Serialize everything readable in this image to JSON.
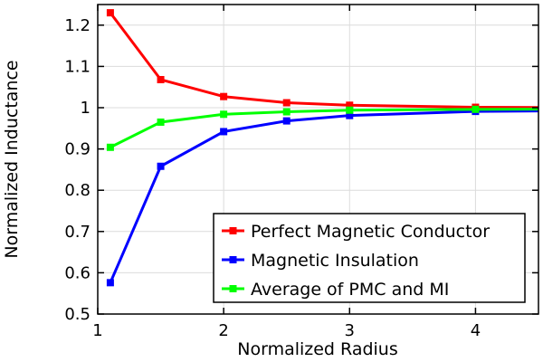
{
  "chart_data": {
    "type": "line",
    "title": "",
    "xlabel": "Normalized Radius",
    "ylabel": "Normalized Inductance",
    "xlim": [
      1,
      4.5
    ],
    "ylim": [
      0.5,
      1.25
    ],
    "xticks": [
      1,
      2,
      3,
      4
    ],
    "xtick_labels": [
      "1",
      "2",
      "3",
      "4"
    ],
    "yticks": [
      0.5,
      0.6,
      0.7,
      0.8,
      0.9,
      1.0,
      1.1,
      1.2
    ],
    "ytick_labels": [
      "0.5",
      "0.6",
      "0.7",
      "0.8",
      "0.9",
      "1",
      "1.1",
      "1.2"
    ],
    "grid": true,
    "legend_position": "bottom-right",
    "x": [
      1.1,
      1.5,
      2,
      2.5,
      3,
      4,
      5
    ],
    "series": [
      {
        "name": "Perfect Magnetic Conductor",
        "color": "#ff0000",
        "values": [
          1.23,
          1.068,
          1.027,
          1.012,
          1.006,
          1.001,
          1.0
        ]
      },
      {
        "name": "Magnetic Insulation",
        "color": "#0000ff",
        "values": [
          0.576,
          0.858,
          0.942,
          0.968,
          0.981,
          0.991,
          0.993
        ]
      },
      {
        "name": "Average of PMC and MI",
        "color": "#00ff00",
        "values": [
          0.904,
          0.965,
          0.984,
          0.99,
          0.994,
          0.996,
          0.997
        ]
      }
    ]
  }
}
